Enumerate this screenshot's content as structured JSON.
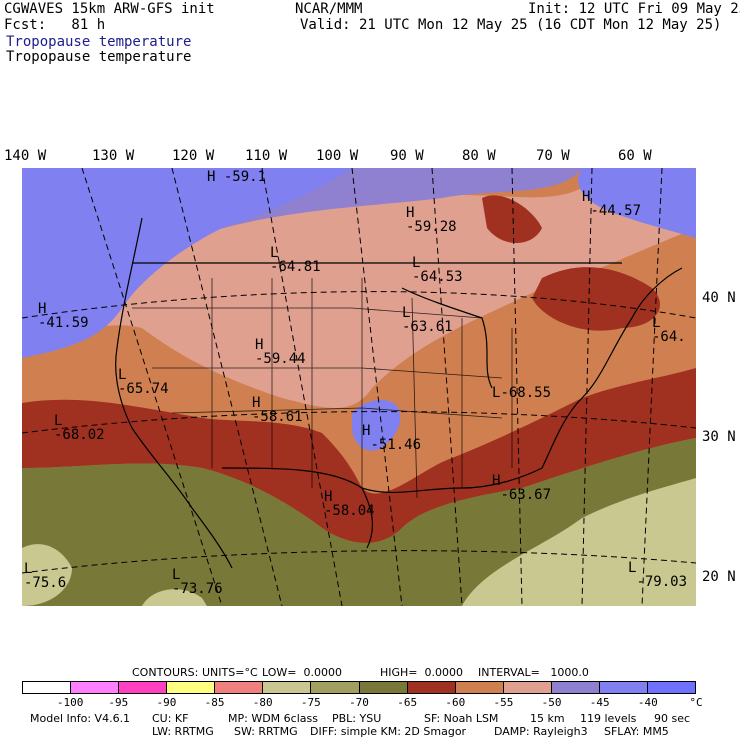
{
  "header": {
    "line1_left": "CGWAVES 15km ARW-GFS init",
    "line1_mid": "NCAR/MMM",
    "line1_right": "Init: 12 UTC Fri 09 May 25",
    "line2_left": "Fcst:   81 h",
    "line2_right": "Valid: 21 UTC Mon 12 May 25 (16 CDT Mon 12 May 25)",
    "field_title_blue": "Tropopause temperature",
    "field_title_black": "Tropopause temperature"
  },
  "longitudes": [
    "140 W",
    "130 W",
    "120 W",
    "110 W",
    "100 W",
    "90 W",
    "80 W",
    "70 W",
    "60 W"
  ],
  "latitudes": [
    "40 N",
    "30 N",
    "20 N"
  ],
  "map_labels": [
    {
      "letter": "H",
      "value": "-59.1"
    },
    {
      "letter": "H",
      "value": "-59.28"
    },
    {
      "letter": "H",
      "value": "-44.57"
    },
    {
      "letter": "L",
      "value": "-64.81"
    },
    {
      "letter": "L",
      "value": "-64.53"
    },
    {
      "letter": "H",
      "value": "-41.59"
    },
    {
      "letter": "L",
      "value": "-63.61"
    },
    {
      "letter": "L",
      "value": "-64."
    },
    {
      "letter": "H",
      "value": "-59.44"
    },
    {
      "letter": "L",
      "value": "-65.74"
    },
    {
      "letter": "H",
      "value": "-58.61"
    },
    {
      "letter": "L",
      "value": "-68.55"
    },
    {
      "letter": "L",
      "value": "-68.02"
    },
    {
      "letter": "H",
      "value": "-51.46"
    },
    {
      "letter": "H",
      "value": "-63.67"
    },
    {
      "letter": "H",
      "value": "-58.04"
    },
    {
      "letter": "L",
      "value": "-75.6"
    },
    {
      "letter": "L",
      "value": "-73.76"
    },
    {
      "letter": "L",
      "value": "-79.03"
    }
  ],
  "contours_line": {
    "contours": "CONTOURS:",
    "units": "UNITS=°C",
    "low": "LOW=  0.0000",
    "high": "HIGH=  0.0000",
    "interval": "INTERVAL=   1000.0"
  },
  "legend": {
    "colors": [
      "#ffffff",
      "#ff80ff",
      "#ff40c0",
      "#ffff80",
      "#f08080",
      "#c8c890",
      "#a0a060",
      "#787838",
      "#a03020",
      "#d08050",
      "#e0a090",
      "#9080d0",
      "#8080f0",
      "#7070ff"
    ],
    "ticks": [
      "-100",
      "-95",
      "-90",
      "-85",
      "-80",
      "-75",
      "-70",
      "-65",
      "-60",
      "-55",
      "-50",
      "-45",
      "-40",
      "°C"
    ]
  },
  "footer": {
    "model_info": "Model Info: V4.6.1",
    "cu": "CU: KF",
    "mp": "MP: WDM 6class",
    "pbl": "PBL: YSU",
    "sf": "SF: Noah LSM",
    "res": "15 km",
    "levels": "119 levels",
    "dt": "90 sec",
    "lw": "LW: RRTMG",
    "sw": "SW: RRTMG",
    "diff": "DIFF: simple KM: 2D Smagor",
    "damp": "DAMP: Rayleigh3",
    "sflay": "SFLAY: MM5"
  }
}
